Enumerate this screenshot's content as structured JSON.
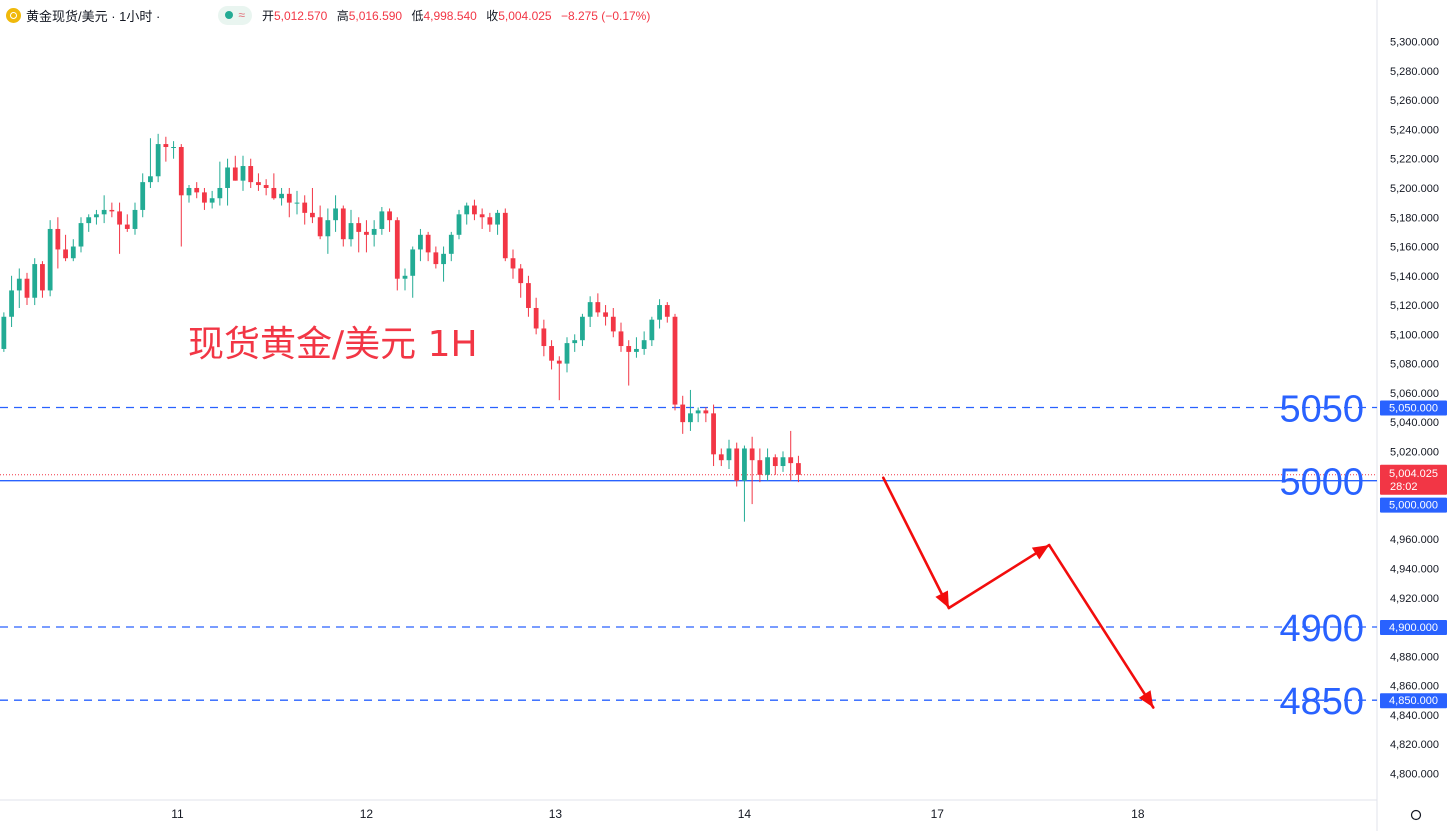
{
  "header": {
    "symbol_title": "黄金现货/美元 · 1小时 ·",
    "icons": [
      "gold-coin-icon",
      "market-open-dot-icon",
      "wave-icon"
    ],
    "ohlc": [
      {
        "label": "开",
        "value": "5,012.570"
      },
      {
        "label": "高",
        "value": "5,016.590"
      },
      {
        "label": "低",
        "value": "4,998.540"
      },
      {
        "label": "收",
        "value": "5,004.025"
      }
    ],
    "change": "−8.275 (−0.17%)"
  },
  "chart_data": {
    "type": "candlestick",
    "annotation_title": "现货黄金/美元 1H",
    "y_axis": {
      "range": [
        4790,
        5310
      ],
      "ticks": [
        "5,300.000",
        "5,280.000",
        "5,260.000",
        "5,240.000",
        "5,220.000",
        "5,200.000",
        "5,180.000",
        "5,160.000",
        "5,140.000",
        "5,120.000",
        "5,100.000",
        "5,080.000",
        "5,060.000",
        "5,040.000",
        "5,020.000",
        "5,000.000",
        "4,960.000",
        "4,940.000",
        "4,920.000",
        "4,880.000",
        "4,860.000",
        "4,840.000",
        "4,820.000",
        "4,800.000"
      ],
      "tick_values": [
        5300,
        5280,
        5260,
        5240,
        5220,
        5200,
        5180,
        5160,
        5140,
        5120,
        5100,
        5080,
        5060,
        5040,
        5020,
        5000,
        4960,
        4940,
        4920,
        4880,
        4860,
        4840,
        4820,
        4800
      ]
    },
    "x_axis": {
      "ticks": [
        {
          "label": "11",
          "bar": 22.5
        },
        {
          "label": "12",
          "bar": 47
        },
        {
          "label": "13",
          "bar": 71.5
        },
        {
          "label": "14",
          "bar": 96
        },
        {
          "label": "17",
          "bar": 121
        },
        {
          "label": "18",
          "bar": 147
        }
      ],
      "bar_range": [
        -0.5,
        178
      ]
    },
    "current_price": {
      "value": 5004.025,
      "label": "5,004.025",
      "countdown": "28:02"
    },
    "levels": [
      {
        "value": 5050,
        "big_label": "5050",
        "axis_label": "5,050.000",
        "style": "dashed"
      },
      {
        "value": 5000,
        "big_label": "5000",
        "axis_label": "5,000.000",
        "style": "solid"
      },
      {
        "value": 4900,
        "big_label": "4900",
        "axis_label": "4,900.000",
        "style": "dashed"
      },
      {
        "value": 4850,
        "big_label": "4850",
        "axis_label": "4,850.000",
        "style": "dashed"
      }
    ],
    "forecast_path": [
      {
        "bar": 114,
        "y": 5002
      },
      {
        "bar": 122.5,
        "y": 4913
      },
      {
        "bar": 135.5,
        "y": 4956
      },
      {
        "bar": 149,
        "y": 4845
      }
    ],
    "candles": [
      [
        5090,
        5115,
        5088,
        5112
      ],
      [
        5112,
        5140,
        5105,
        5130
      ],
      [
        5130,
        5145,
        5118,
        5138
      ],
      [
        5138,
        5142,
        5120,
        5125
      ],
      [
        5125,
        5152,
        5120,
        5148
      ],
      [
        5148,
        5150,
        5125,
        5130
      ],
      [
        5130,
        5178,
        5126,
        5172
      ],
      [
        5172,
        5180,
        5145,
        5158
      ],
      [
        5158,
        5168,
        5150,
        5152
      ],
      [
        5152,
        5165,
        5150,
        5160
      ],
      [
        5160,
        5180,
        5156,
        5176
      ],
      [
        5176,
        5182,
        5170,
        5180
      ],
      [
        5180,
        5185,
        5175,
        5182
      ],
      [
        5182,
        5195,
        5176,
        5185
      ],
      [
        5185,
        5190,
        5180,
        5184
      ],
      [
        5184,
        5190,
        5155,
        5175
      ],
      [
        5175,
        5182,
        5170,
        5172
      ],
      [
        5172,
        5190,
        5168,
        5185
      ],
      [
        5185,
        5210,
        5180,
        5204
      ],
      [
        5204,
        5234,
        5200,
        5208
      ],
      [
        5208,
        5237,
        5204,
        5230
      ],
      [
        5230,
        5235,
        5218,
        5228
      ],
      [
        5228,
        5232,
        5220,
        5228
      ],
      [
        5228,
        5230,
        5160,
        5195
      ],
      [
        5195,
        5202,
        5190,
        5200
      ],
      [
        5200,
        5204,
        5193,
        5197
      ],
      [
        5197,
        5200,
        5185,
        5190
      ],
      [
        5190,
        5198,
        5186,
        5193
      ],
      [
        5193,
        5218,
        5188,
        5200
      ],
      [
        5200,
        5220,
        5188,
        5214
      ],
      [
        5214,
        5222,
        5205,
        5205
      ],
      [
        5205,
        5222,
        5198,
        5215
      ],
      [
        5215,
        5220,
        5200,
        5204
      ],
      [
        5204,
        5210,
        5198,
        5202
      ],
      [
        5202,
        5206,
        5195,
        5200
      ],
      [
        5200,
        5210,
        5192,
        5193
      ],
      [
        5193,
        5200,
        5188,
        5196
      ],
      [
        5196,
        5200,
        5180,
        5190
      ],
      [
        5190,
        5198,
        5182,
        5190
      ],
      [
        5190,
        5195,
        5175,
        5183
      ],
      [
        5183,
        5200,
        5176,
        5180
      ],
      [
        5180,
        5188,
        5165,
        5167
      ],
      [
        5167,
        5186,
        5155,
        5178
      ],
      [
        5178,
        5195,
        5170,
        5186
      ],
      [
        5186,
        5188,
        5160,
        5165
      ],
      [
        5165,
        5185,
        5160,
        5176
      ],
      [
        5176,
        5180,
        5156,
        5170
      ],
      [
        5170,
        5178,
        5156,
        5168
      ],
      [
        5168,
        5178,
        5160,
        5172
      ],
      [
        5172,
        5187,
        5168,
        5184
      ],
      [
        5184,
        5186,
        5170,
        5178
      ],
      [
        5178,
        5180,
        5130,
        5138
      ],
      [
        5138,
        5145,
        5130,
        5140
      ],
      [
        5140,
        5160,
        5125,
        5158
      ],
      [
        5158,
        5172,
        5150,
        5168
      ],
      [
        5168,
        5170,
        5150,
        5156
      ],
      [
        5156,
        5160,
        5145,
        5148
      ],
      [
        5148,
        5160,
        5136,
        5155
      ],
      [
        5155,
        5170,
        5150,
        5168
      ],
      [
        5168,
        5185,
        5165,
        5182
      ],
      [
        5182,
        5190,
        5175,
        5188
      ],
      [
        5188,
        5192,
        5178,
        5182
      ],
      [
        5182,
        5186,
        5172,
        5180
      ],
      [
        5180,
        5183,
        5170,
        5175
      ],
      [
        5175,
        5185,
        5168,
        5183
      ],
      [
        5183,
        5186,
        5150,
        5152
      ],
      [
        5152,
        5158,
        5138,
        5145
      ],
      [
        5145,
        5148,
        5125,
        5135
      ],
      [
        5135,
        5140,
        5112,
        5118
      ],
      [
        5118,
        5125,
        5100,
        5104
      ],
      [
        5104,
        5110,
        5085,
        5092
      ],
      [
        5092,
        5096,
        5076,
        5082
      ],
      [
        5082,
        5085,
        5055,
        5080
      ],
      [
        5080,
        5098,
        5074,
        5094
      ],
      [
        5094,
        5100,
        5088,
        5096
      ],
      [
        5096,
        5114,
        5092,
        5112
      ],
      [
        5112,
        5126,
        5105,
        5122
      ],
      [
        5122,
        5128,
        5112,
        5115
      ],
      [
        5115,
        5120,
        5106,
        5112
      ],
      [
        5112,
        5118,
        5098,
        5102
      ],
      [
        5102,
        5108,
        5088,
        5092
      ],
      [
        5092,
        5096,
        5065,
        5088
      ],
      [
        5088,
        5098,
        5084,
        5090
      ],
      [
        5090,
        5102,
        5086,
        5096
      ],
      [
        5096,
        5112,
        5092,
        5110
      ],
      [
        5110,
        5124,
        5104,
        5120
      ],
      [
        5120,
        5122,
        5108,
        5112
      ],
      [
        5112,
        5114,
        5048,
        5052
      ],
      [
        5052,
        5058,
        5032,
        5040
      ],
      [
        5040,
        5062,
        5034,
        5046
      ],
      [
        5046,
        5050,
        5040,
        5048
      ],
      [
        5048,
        5050,
        5040,
        5046
      ],
      [
        5046,
        5052,
        5010,
        5018
      ],
      [
        5018,
        5022,
        5010,
        5014
      ],
      [
        5014,
        5028,
        5008,
        5022
      ],
      [
        5022,
        5026,
        4996,
        5000
      ],
      [
        5000,
        5024,
        4972,
        5022
      ],
      [
        5022,
        5030,
        4984,
        5014
      ],
      [
        5014,
        5022,
        4999,
        5004
      ],
      [
        5004,
        5022,
        5000,
        5016
      ],
      [
        5016,
        5018,
        5004,
        5010
      ],
      [
        5010,
        5020,
        5006,
        5016
      ],
      [
        5016,
        5034,
        5000,
        5012
      ],
      [
        5012,
        5017,
        4999,
        5004
      ]
    ]
  }
}
